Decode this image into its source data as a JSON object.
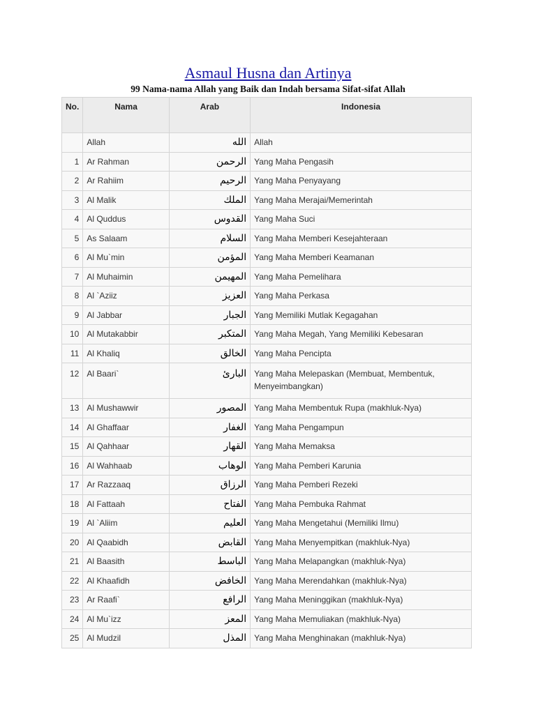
{
  "title": "Asmaul Husna dan Artinya",
  "subtitle": "99 Nama-nama Allah yang Baik dan Indah bersama Sifat-sifat Allah",
  "table": {
    "headers": [
      "No.",
      "Nama",
      "Arab",
      "Indonesia"
    ],
    "rows": [
      {
        "no": "",
        "nama": "Allah",
        "arab": "الله",
        "indo": "Allah"
      },
      {
        "no": "1",
        "nama": "Ar Rahman",
        "arab": "الرحمن",
        "indo": "Yang Maha Pengasih"
      },
      {
        "no": "2",
        "nama": "Ar Rahiim",
        "arab": "الرحيم",
        "indo": "Yang Maha Penyayang"
      },
      {
        "no": "3",
        "nama": "Al Malik",
        "arab": "الملك",
        "indo": "Yang Maha Merajai/Memerintah"
      },
      {
        "no": "4",
        "nama": "Al Quddus",
        "arab": "القدوس",
        "indo": "Yang Maha Suci"
      },
      {
        "no": "5",
        "nama": "As Salaam",
        "arab": "السلام",
        "indo": "Yang Maha Memberi Kesejahteraan"
      },
      {
        "no": "6",
        "nama": "Al Mu`min",
        "arab": "المؤمن",
        "indo": "Yang Maha Memberi Keamanan"
      },
      {
        "no": "7",
        "nama": "Al Muhaimin",
        "arab": "المهيمن",
        "indo": "Yang Maha Pemelihara"
      },
      {
        "no": "8",
        "nama": "Al `Aziiz",
        "arab": "العزيز",
        "indo": "Yang Maha Perkasa"
      },
      {
        "no": "9",
        "nama": "Al Jabbar",
        "arab": "الجبار",
        "indo": "Yang Memiliki Mutlak Kegagahan"
      },
      {
        "no": "10",
        "nama": "Al Mutakabbir",
        "arab": "المتكبر",
        "indo": "Yang Maha Megah, Yang Memiliki Kebesaran"
      },
      {
        "no": "11",
        "nama": "Al Khaliq",
        "arab": "الخالق",
        "indo": "Yang Maha Pencipta"
      },
      {
        "no": "12",
        "nama": "Al Baari`",
        "arab": "البارئ",
        "indo": "Yang Maha Melepaskan (Membuat, Membentuk, Menyeimbangkan)"
      },
      {
        "no": "13",
        "nama": "Al Mushawwir",
        "arab": "المصور",
        "indo": "Yang Maha Membentuk Rupa (makhluk-Nya)"
      },
      {
        "no": "14",
        "nama": "Al Ghaffaar",
        "arab": "الغفار",
        "indo": "Yang Maha Pengampun"
      },
      {
        "no": "15",
        "nama": "Al Qahhaar",
        "arab": "القهار",
        "indo": "Yang Maha Memaksa"
      },
      {
        "no": "16",
        "nama": "Al Wahhaab",
        "arab": "الوهاب",
        "indo": "Yang Maha Pemberi Karunia"
      },
      {
        "no": "17",
        "nama": "Ar Razzaaq",
        "arab": "الرزاق",
        "indo": "Yang Maha Pemberi Rezeki"
      },
      {
        "no": "18",
        "nama": "Al Fattaah",
        "arab": "الفتاح",
        "indo": "Yang Maha Pembuka Rahmat"
      },
      {
        "no": "19",
        "nama": "Al `Aliim",
        "arab": "العليم",
        "indo": "Yang Maha Mengetahui (Memiliki Ilmu)"
      },
      {
        "no": "20",
        "nama": "Al Qaabidh",
        "arab": "القابض",
        "indo": "Yang Maha Menyempitkan (makhluk-Nya)"
      },
      {
        "no": "21",
        "nama": "Al Baasith",
        "arab": "الباسط",
        "indo": "Yang Maha Melapangkan (makhluk-Nya)"
      },
      {
        "no": "22",
        "nama": "Al Khaafidh",
        "arab": "الخافض",
        "indo": "Yang Maha Merendahkan (makhluk-Nya)"
      },
      {
        "no": "23",
        "nama": "Ar Raafi`",
        "arab": "الرافع",
        "indo": "Yang Maha Meninggikan (makhluk-Nya)"
      },
      {
        "no": "24",
        "nama": "Al Mu`izz",
        "arab": "المعز",
        "indo": "Yang Maha Memuliakan (makhluk-Nya)"
      },
      {
        "no": "25",
        "nama": "Al Mudzil",
        "arab": "المذل",
        "indo": "Yang Maha Menghinakan (makhluk-Nya)"
      }
    ]
  }
}
